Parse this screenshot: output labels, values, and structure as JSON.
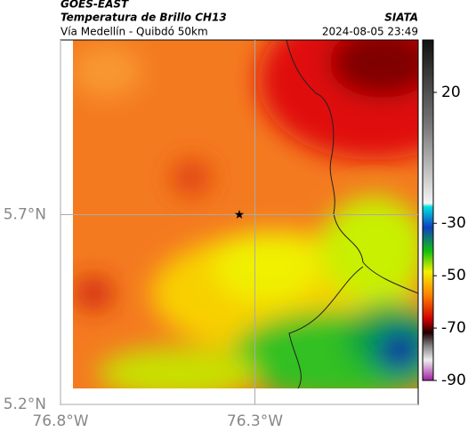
{
  "chart_data": {
    "type": "map",
    "title": "GOES-EAST",
    "subtitle": "Temperatura de Brillo CH13",
    "region": "Vía Medellín - Quibdó 50km",
    "source": "SIATA",
    "datetime": "2024-08-05 23:49",
    "xlim": [
      -76.8,
      -75.88
    ],
    "ylim": [
      5.2,
      6.16
    ],
    "xticks": [
      {
        "value": -76.8,
        "label": "76.8°W"
      },
      {
        "value": -76.3,
        "label": "76.3°W"
      }
    ],
    "yticks": [
      {
        "value": 5.2,
        "label": "5.2°N"
      },
      {
        "value": 5.7,
        "label": "5.7°N"
      }
    ],
    "grid": true,
    "marker": {
      "lon": -76.34,
      "lat": 5.7
    },
    "clim": [
      -90,
      40
    ],
    "cticks": [
      20,
      -30,
      -50,
      -70,
      -90
    ]
  }
}
